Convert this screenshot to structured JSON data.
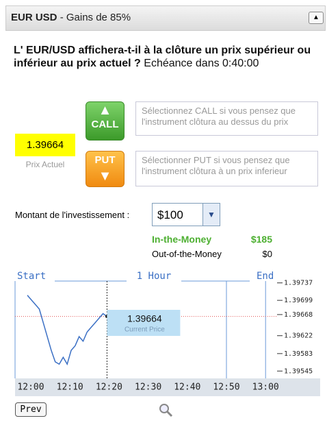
{
  "header": {
    "pair": "EUR USD",
    "gain": "- Gains de 85%"
  },
  "question": {
    "text": "L' EUR/USD affichera-t-il à la clôture un prix supérieur ou inférieur au prix actuel ?",
    "expiry": "Echéance dans 0:40:00"
  },
  "price": {
    "value": "1.39664",
    "label": "Prix Actuel"
  },
  "call": {
    "button": "CALL",
    "hint": "Sélectionnez CALL si vous pensez que l'instrument clôtura au dessus du prix"
  },
  "put": {
    "button": "PUT",
    "hint": "Sélectionner PUT si vous pensez que l'instrument clôtura à un prix inferieur"
  },
  "investment": {
    "label": "Montant de l'investissement :",
    "amount": "$100"
  },
  "payout": {
    "in_label": "In-the-Money",
    "in_value": "$185",
    "out_label": "Out-of-the-Money",
    "out_value": "$0"
  },
  "price_chart": {
    "type": "line",
    "start": "Start",
    "span": "1 Hour",
    "end": "End",
    "times": [
      "12:00",
      "12:10",
      "12:20",
      "12:30",
      "12:40",
      "12:50",
      "13:00"
    ],
    "values": [
      1.3971,
      1.397,
      1.3969,
      1.3968,
      1.3965,
      1.3962,
      1.3959,
      1.39565,
      1.3956,
      1.39575,
      1.3956,
      1.3959,
      1.396,
      1.3962,
      1.3961,
      1.3963,
      1.3964,
      1.3965,
      1.3966,
      1.3967,
      1.39664
    ],
    "color": "#3a6fc4",
    "ylim": [
      1.39532,
      1.39741
    ],
    "yticks": [
      1.39737,
      1.39699,
      1.39668,
      1.39622,
      1.39583,
      1.39545
    ],
    "current": 1.39664,
    "current_value": "1.39664",
    "current_label": "Current Price"
  },
  "prev": "Prev"
}
